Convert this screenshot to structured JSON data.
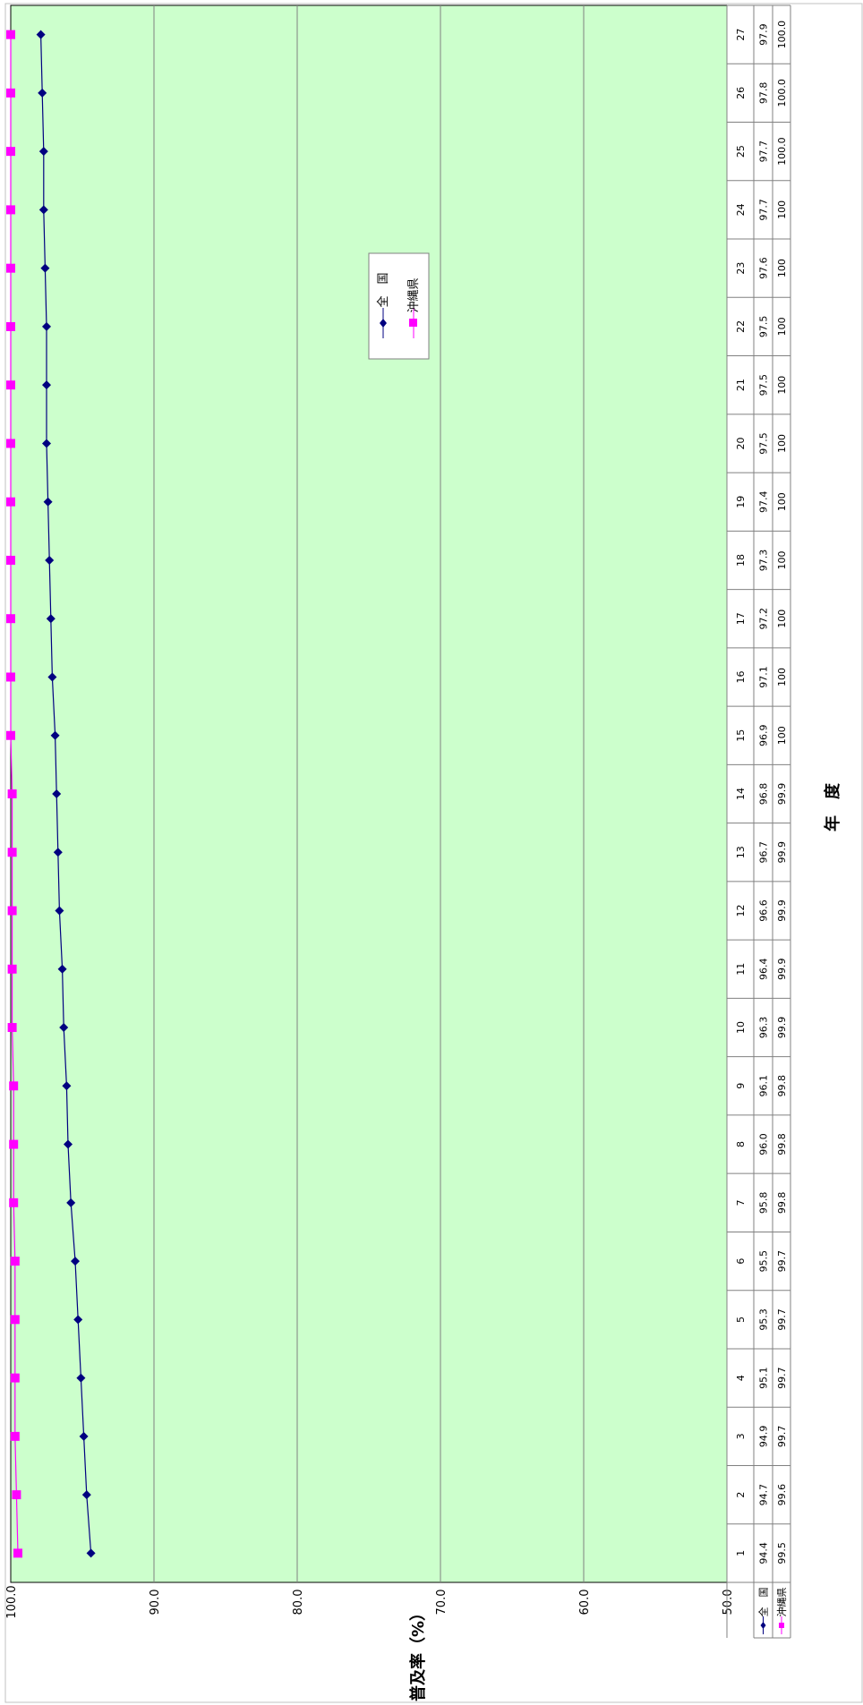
{
  "chart_data": {
    "type": "line",
    "xlabel": "年　度",
    "ylabel": "普及率（%）",
    "ylim": [
      50,
      100
    ],
    "yticks": [
      "100.0",
      "90.0",
      "80.0",
      "70.0",
      "60.0",
      "50.0"
    ],
    "grid": true,
    "legend_placement": "upper-middle",
    "plot_bg": "#ccffcc",
    "categories": [
      "1",
      "2",
      "3",
      "4",
      "5",
      "6",
      "7",
      "8",
      "9",
      "10",
      "11",
      "12",
      "13",
      "14",
      "15",
      "16",
      "17",
      "18",
      "19",
      "20",
      "21",
      "22",
      "23",
      "24",
      "25",
      "26",
      "27"
    ],
    "series": [
      {
        "name": "全　国",
        "color": "#000080",
        "marker": "diamond",
        "values": [
          94.4,
          94.7,
          94.9,
          95.1,
          95.3,
          95.5,
          95.8,
          96.0,
          96.1,
          96.3,
          96.4,
          96.6,
          96.7,
          96.8,
          96.9,
          97.1,
          97.2,
          97.3,
          97.4,
          97.5,
          97.5,
          97.5,
          97.6,
          97.7,
          97.7,
          97.8,
          97.9
        ],
        "labels": [
          "94.4",
          "94.7",
          "94.9",
          "95.1",
          "95.3",
          "95.5",
          "95.8",
          "96.0",
          "96.1",
          "96.3",
          "96.4",
          "96.6",
          "96.7",
          "96.8",
          "96.9",
          "97.1",
          "97.2",
          "97.3",
          "97.4",
          "97.5",
          "97.5",
          "97.5",
          "97.6",
          "97.7",
          "97.7",
          "97.8",
          "97.9"
        ]
      },
      {
        "name": "沖縄県",
        "color": "#ff00ff",
        "marker": "square",
        "values": [
          99.5,
          99.6,
          99.7,
          99.7,
          99.7,
          99.7,
          99.8,
          99.8,
          99.8,
          99.9,
          99.9,
          99.9,
          99.9,
          99.9,
          100,
          100,
          100,
          100,
          100,
          100,
          100,
          100,
          100,
          100,
          100.0,
          100.0,
          100.0
        ],
        "labels": [
          "99.5",
          "99.6",
          "99.7",
          "99.7",
          "99.7",
          "99.7",
          "99.8",
          "99.8",
          "99.8",
          "99.9",
          "99.9",
          "99.9",
          "99.9",
          "99.9",
          "100",
          "100",
          "100",
          "100",
          "100",
          "100",
          "100",
          "100",
          "100",
          "100",
          "100.0",
          "100.0",
          "100.0"
        ]
      }
    ]
  }
}
